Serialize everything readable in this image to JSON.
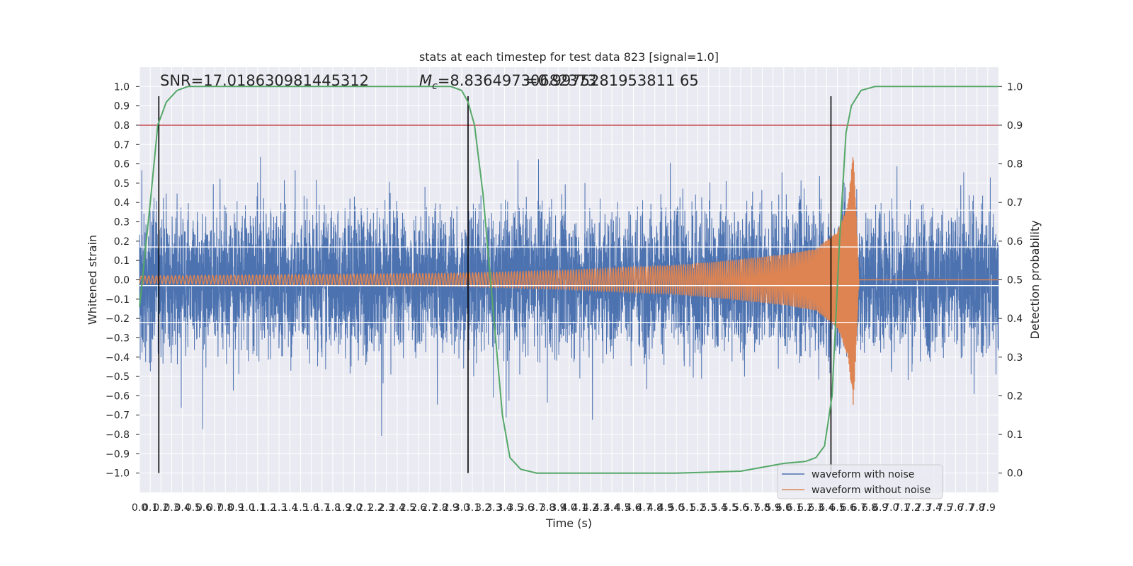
{
  "chart_data": {
    "type": "line",
    "title": "stats at each timestep for test data 823 [signal=1.0]",
    "xlabel": "Time (s)",
    "ylabel": "Whitened strain",
    "y2label": "Detection probability",
    "xlim": [
      0.0,
      8.0
    ],
    "ylim": [
      -1.1,
      1.1
    ],
    "y2lim": [
      -0.05,
      1.05
    ],
    "x_ticks": [
      "0.0",
      "0.1",
      "0.2",
      "0.3",
      "0.4",
      "0.5",
      "0.6",
      "0.7",
      "0.8",
      "0.9",
      "1.0",
      "1.1",
      "1.2",
      "1.3",
      "1.4",
      "1.5",
      "1.6",
      "1.7",
      "1.8",
      "1.9",
      "2.0",
      "2.1",
      "2.2",
      "2.3",
      "2.4",
      "2.5",
      "2.6",
      "2.7",
      "2.8",
      "2.9",
      "3.0",
      "3.1",
      "3.2",
      "3.3",
      "3.4",
      "3.5",
      "3.6",
      "3.7",
      "3.8",
      "3.9",
      "4.0",
      "4.1",
      "4.2",
      "4.3",
      "4.4",
      "4.5",
      "4.6",
      "4.7",
      "4.8",
      "4.9",
      "5.0",
      "5.1",
      "5.2",
      "5.3",
      "5.4",
      "5.5",
      "5.6",
      "5.7",
      "5.8",
      "5.9",
      "6.0",
      "6.1",
      "6.2",
      "6.3",
      "6.4",
      "6.5",
      "6.6",
      "6.7",
      "6.8",
      "6.9",
      "7.0",
      "7.1",
      "7.2",
      "7.3",
      "7.4",
      "7.5",
      "7.6",
      "7.7",
      "7.8",
      "7.9"
    ],
    "y_ticks": [
      "1.0",
      "0.9",
      "0.8",
      "0.7",
      "0.6",
      "0.5",
      "0.4",
      "0.3",
      "0.2",
      "0.1",
      "0.0",
      "−0.1",
      "−0.2",
      "−0.3",
      "−0.4",
      "−0.5",
      "−0.6",
      "−0.7",
      "−0.8",
      "−0.9",
      "−1.0"
    ],
    "y2_ticks": [
      "1.0",
      "0.9",
      "0.8",
      "0.7",
      "0.6",
      "0.5",
      "0.4",
      "0.3",
      "0.2",
      "0.1",
      "0.0"
    ],
    "annotations": {
      "snr": "SNR=17.018630981445312",
      "mc": "M_c=8.83649730682373",
      "overlap": "=0.9975281953811 65"
    },
    "series": [
      {
        "name": "waveform with noise",
        "color": "#4c72b0",
        "noise_amplitude": 0.28
      },
      {
        "name": "waveform without noise",
        "color": "#dd8452",
        "points": [
          [
            0.0,
            0.02
          ],
          [
            1.0,
            0.025
          ],
          [
            2.0,
            0.03
          ],
          [
            3.0,
            0.035
          ],
          [
            4.0,
            0.05
          ],
          [
            5.0,
            0.075
          ],
          [
            5.5,
            0.1
          ],
          [
            6.0,
            0.13
          ],
          [
            6.3,
            0.16
          ],
          [
            6.5,
            0.25
          ],
          [
            6.6,
            0.4
          ],
          [
            6.65,
            0.67
          ],
          [
            6.7,
            0.01
          ],
          [
            8.0,
            0.0
          ]
        ]
      },
      {
        "name": "detection probability",
        "color": "#55a868",
        "axis": "right",
        "points": [
          [
            0.0,
            0.43
          ],
          [
            0.1,
            0.7
          ],
          [
            0.17,
            0.9
          ],
          [
            0.25,
            0.96
          ],
          [
            0.35,
            0.99
          ],
          [
            0.45,
            1.0
          ],
          [
            1.0,
            1.0
          ],
          [
            2.0,
            1.0
          ],
          [
            2.9,
            1.0
          ],
          [
            3.0,
            0.99
          ],
          [
            3.06,
            0.96
          ],
          [
            3.12,
            0.9
          ],
          [
            3.2,
            0.72
          ],
          [
            3.3,
            0.4
          ],
          [
            3.38,
            0.15
          ],
          [
            3.45,
            0.04
          ],
          [
            3.55,
            0.01
          ],
          [
            3.7,
            0.0
          ],
          [
            5.0,
            0.0
          ],
          [
            5.6,
            0.005
          ],
          [
            5.8,
            0.015
          ],
          [
            6.0,
            0.025
          ],
          [
            6.2,
            0.03
          ],
          [
            6.3,
            0.04
          ],
          [
            6.38,
            0.07
          ],
          [
            6.45,
            0.2
          ],
          [
            6.52,
            0.6
          ],
          [
            6.58,
            0.88
          ],
          [
            6.63,
            0.95
          ],
          [
            6.72,
            0.99
          ],
          [
            6.85,
            1.0
          ],
          [
            8.0,
            1.0
          ]
        ]
      }
    ],
    "threshold": {
      "y2": 0.9,
      "color": "#c44e52"
    },
    "vertical_markers": [
      0.18,
      3.06,
      6.44
    ],
    "white_hlines_y": [
      0.36,
      0.17,
      -0.03,
      -0.22
    ],
    "legend": {
      "placement": "lower-right",
      "entries": [
        "waveform with noise",
        "waveform without noise"
      ]
    }
  }
}
